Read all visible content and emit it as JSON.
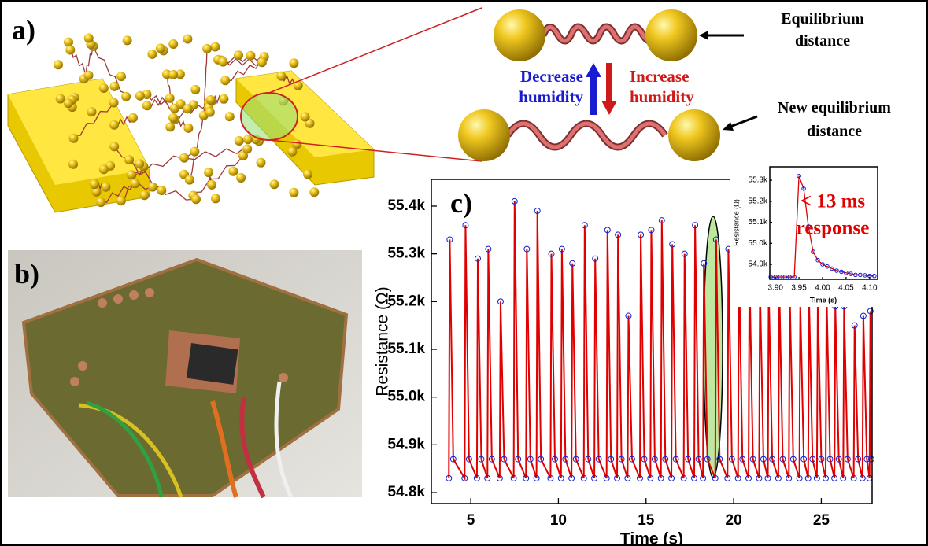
{
  "panel_labels": [
    "a)",
    "b)"
  ],
  "diagram": {
    "equilibrium": [
      "Equilibrium",
      "distance"
    ],
    "new_equilibrium": [
      "New equilibrium",
      "distance"
    ],
    "decrease": [
      "Decrease",
      "humidity"
    ],
    "increase": [
      "Increase",
      "humidity"
    ]
  },
  "chart_data": [
    {
      "type": "line",
      "panel_label": "c)",
      "x_label": "Time (s)",
      "y_label": "Resistance (Ω)",
      "xlim": [
        2.75,
        27.9
      ],
      "ylim": [
        54777,
        55456
      ],
      "xticks": [
        5,
        10,
        15,
        20,
        25
      ],
      "yticks": [
        {
          "value": 54800,
          "label": "54.8k"
        },
        {
          "value": 54900,
          "label": "54.9k"
        },
        {
          "value": 55000,
          "label": "55.0k"
        },
        {
          "value": 55100,
          "label": "55.1k"
        },
        {
          "value": 55200,
          "label": "55.2k"
        },
        {
          "value": 55300,
          "label": "55.3k"
        },
        {
          "value": 55400,
          "label": "55.4k"
        }
      ],
      "series": [
        {
          "color": "#e00000",
          "marker_color": "#1020d0",
          "x": [
            3.75,
            3.8,
            4.0,
            4.65,
            4.7,
            4.9,
            5.35,
            5.4,
            5.6,
            5.95,
            6.0,
            6.2,
            6.65,
            6.7,
            6.9,
            7.45,
            7.5,
            7.7,
            8.15,
            8.2,
            8.4,
            8.75,
            8.8,
            9.0,
            9.55,
            9.6,
            9.8,
            10.15,
            10.2,
            10.4,
            10.75,
            10.8,
            11.0,
            11.45,
            11.5,
            11.7,
            12.05,
            12.1,
            12.3,
            12.75,
            12.8,
            13.0,
            13.35,
            13.4,
            13.6,
            13.95,
            14.0,
            14.2,
            14.65,
            14.7,
            14.9,
            15.25,
            15.3,
            15.5,
            15.85,
            15.9,
            16.1,
            16.45,
            16.5,
            16.7,
            17.15,
            17.2,
            17.4,
            17.75,
            17.8,
            18.0,
            18.25,
            18.3,
            18.5,
            18.95,
            19.0,
            19.2,
            19.65,
            19.7,
            19.9,
            20.25,
            20.3,
            20.5,
            20.85,
            20.9,
            21.1,
            21.45,
            21.5,
            21.7,
            21.95,
            22.0,
            22.2,
            22.55,
            22.6,
            22.8,
            23.15,
            23.2,
            23.4,
            23.75,
            23.8,
            24.0,
            24.25,
            24.3,
            24.5,
            24.75,
            24.8,
            25.0,
            25.25,
            25.3,
            25.5,
            25.75,
            25.8,
            26.0,
            26.25,
            26.3,
            26.5,
            26.85,
            26.9,
            27.1,
            27.35,
            27.4,
            27.6,
            27.75,
            27.8,
            27.85
          ],
          "values": [
            54830,
            55330,
            54870,
            54830,
            55360,
            54870,
            54830,
            55290,
            54870,
            54830,
            55310,
            54870,
            54830,
            55200,
            54870,
            54830,
            55410,
            54870,
            54830,
            55310,
            54870,
            54830,
            55390,
            54870,
            54830,
            55300,
            54870,
            54830,
            55310,
            54870,
            54830,
            55280,
            54870,
            54830,
            55360,
            54870,
            54830,
            55290,
            54870,
            54830,
            55350,
            54870,
            54830,
            55340,
            54870,
            54830,
            55170,
            54870,
            54830,
            55340,
            54870,
            54830,
            55350,
            54870,
            54830,
            55370,
            54870,
            54830,
            55320,
            54870,
            54830,
            55300,
            54870,
            54830,
            55360,
            54870,
            54830,
            55280,
            54870,
            54830,
            55330,
            54870,
            54830,
            55310,
            54870,
            54830,
            55290,
            54870,
            54830,
            55270,
            54870,
            54830,
            55240,
            54870,
            54830,
            55230,
            54870,
            54830,
            55240,
            54870,
            54830,
            55220,
            54870,
            54830,
            55200,
            54870,
            54830,
            55210,
            54870,
            54830,
            55200,
            54870,
            54830,
            55220,
            54870,
            54830,
            55190,
            54870,
            54830,
            55190,
            54870,
            54830,
            55150,
            54870,
            54830,
            55170,
            54870,
            54830,
            55180,
            54870
          ]
        }
      ]
    },
    {
      "type": "line",
      "x_label": "Time (s)",
      "y_label": "Resistance (Ω)",
      "annotation": [
        "< 13 ms",
        "response"
      ],
      "xlim": [
        3.888,
        4.117
      ],
      "ylim": [
        54829,
        55364
      ],
      "xticks": [
        {
          "value": 3.9,
          "label": "3.90"
        },
        {
          "value": 3.95,
          "label": "3.95"
        },
        {
          "value": 4.0,
          "label": "4.00"
        },
        {
          "value": 4.05,
          "label": "4.05"
        },
        {
          "value": 4.1,
          "label": "4.10"
        }
      ],
      "yticks": [
        {
          "value": 54900,
          "label": "54.9k"
        },
        {
          "value": 55000,
          "label": "55.0k"
        },
        {
          "value": 55100,
          "label": "55.1k"
        },
        {
          "value": 55200,
          "label": "55.2k"
        },
        {
          "value": 55300,
          "label": "55.3k"
        }
      ],
      "series": [
        {
          "color": "#e00000",
          "marker_color": "#1020d0",
          "x": [
            3.89,
            3.9,
            3.91,
            3.92,
            3.93,
            3.94,
            3.95,
            3.96,
            3.97,
            3.98,
            3.99,
            4.0,
            4.01,
            4.02,
            4.03,
            4.04,
            4.05,
            4.06,
            4.07,
            4.08,
            4.09,
            4.1,
            4.11
          ],
          "values": [
            54840,
            54840,
            54840,
            54840,
            54840,
            54840,
            55320,
            55260,
            55080,
            54960,
            54920,
            54900,
            54890,
            54880,
            54870,
            54865,
            54860,
            54855,
            54850,
            54850,
            54848,
            54845,
            54845
          ]
        }
      ]
    }
  ]
}
